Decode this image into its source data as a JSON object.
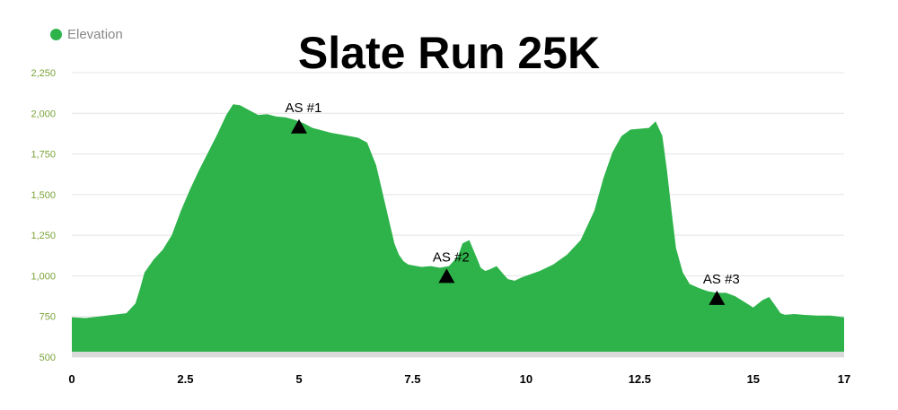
{
  "colors": {
    "area": "#2db34a",
    "grid": "#e4e4e4",
    "ytick": "#7aa33a",
    "baseline": "#dadada"
  },
  "legend": {
    "label": "Elevation",
    "icon": "circle-dot-icon"
  },
  "chart_data": {
    "type": "area",
    "title": "Slate Run 25K",
    "xlabel": "",
    "ylabel": "",
    "xlim": [
      0,
      17
    ],
    "ylim": [
      500,
      2250
    ],
    "x_ticks": [
      0,
      2.5,
      5,
      7.5,
      10,
      12.5,
      15,
      17
    ],
    "x_tick_labels": [
      "0",
      "2.5",
      "5",
      "7.5",
      "10",
      "12.5",
      "15",
      "17"
    ],
    "y_ticks": [
      500,
      750,
      1000,
      1250,
      1500,
      1750,
      2000,
      2250
    ],
    "y_tick_labels": [
      "500",
      "750",
      "1,000",
      "1,250",
      "1,500",
      "1,750",
      "2,000",
      "2,250"
    ],
    "grid": true,
    "legend_position": "top-left",
    "series": [
      {
        "name": "Elevation",
        "x": [
          0,
          0.3,
          0.6,
          0.9,
          1.2,
          1.4,
          1.5,
          1.6,
          1.8,
          2.0,
          2.2,
          2.4,
          2.6,
          2.8,
          3.0,
          3.2,
          3.4,
          3.55,
          3.7,
          3.9,
          4.1,
          4.3,
          4.5,
          4.7,
          4.9,
          5.1,
          5.3,
          5.5,
          5.7,
          5.9,
          6.1,
          6.3,
          6.5,
          6.7,
          6.85,
          7.0,
          7.1,
          7.2,
          7.3,
          7.4,
          7.5,
          7.7,
          7.9,
          8.1,
          8.3,
          8.5,
          8.6,
          8.75,
          8.9,
          9.0,
          9.1,
          9.2,
          9.35,
          9.5,
          9.6,
          9.75,
          9.9,
          10.1,
          10.3,
          10.6,
          10.9,
          11.2,
          11.5,
          11.7,
          11.9,
          12.1,
          12.3,
          12.5,
          12.7,
          12.85,
          13.0,
          13.1,
          13.2,
          13.3,
          13.45,
          13.6,
          13.8,
          14.0,
          14.2,
          14.4,
          14.6,
          14.8,
          15.0,
          15.2,
          15.35,
          15.5,
          15.6,
          15.7,
          15.9,
          16.1,
          16.4,
          16.7,
          17
        ],
        "values": [
          745,
          740,
          750,
          760,
          770,
          830,
          920,
          1020,
          1100,
          1160,
          1250,
          1400,
          1530,
          1650,
          1760,
          1870,
          1990,
          2055,
          2050,
          2020,
          1990,
          1995,
          1980,
          1975,
          1960,
          1940,
          1910,
          1895,
          1880,
          1870,
          1860,
          1850,
          1820,
          1680,
          1500,
          1320,
          1200,
          1130,
          1090,
          1070,
          1065,
          1055,
          1060,
          1050,
          1060,
          1120,
          1200,
          1220,
          1120,
          1050,
          1030,
          1040,
          1060,
          1010,
          980,
          970,
          990,
          1010,
          1030,
          1070,
          1130,
          1220,
          1400,
          1600,
          1760,
          1860,
          1900,
          1905,
          1910,
          1950,
          1860,
          1650,
          1400,
          1170,
          1020,
          950,
          925,
          905,
          895,
          895,
          875,
          840,
          805,
          850,
          870,
          810,
          770,
          760,
          765,
          760,
          755,
          755,
          745
        ]
      }
    ],
    "annotations": [
      {
        "label": "AS #1",
        "x": 5.0,
        "y": 1920
      },
      {
        "label": "AS #2",
        "x": 8.25,
        "y": 1000
      },
      {
        "label": "AS #3",
        "x": 14.2,
        "y": 865
      }
    ]
  }
}
